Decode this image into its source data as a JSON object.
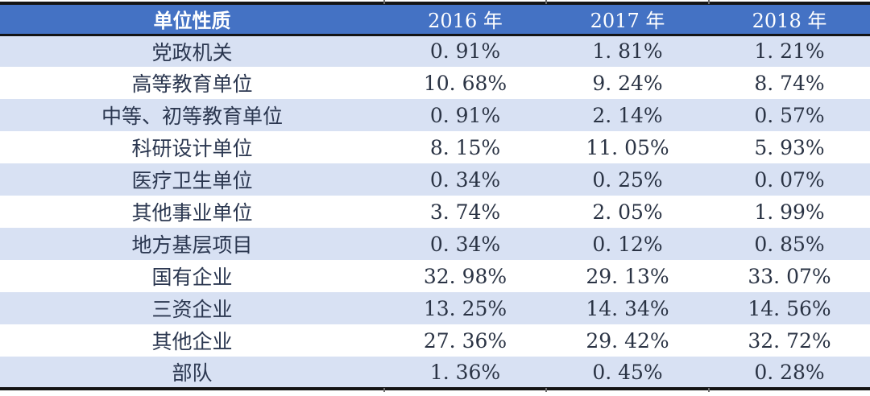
{
  "table": {
    "columns": [
      "单位性质",
      "2016 年",
      "2017 年",
      "2018 年"
    ],
    "rows": [
      {
        "label": "党政机关",
        "cells": [
          "0. 91%",
          "1. 81%",
          "1. 21%"
        ]
      },
      {
        "label": "高等教育单位",
        "cells": [
          "10. 68%",
          "9. 24%",
          "8. 74%"
        ]
      },
      {
        "label": "中等、初等教育单位",
        "cells": [
          "0. 91%",
          "2. 14%",
          "0. 57%"
        ]
      },
      {
        "label": "科研设计单位",
        "cells": [
          "8. 15%",
          "11. 05%",
          "5. 93%"
        ]
      },
      {
        "label": "医疗卫生单位",
        "cells": [
          "0. 34%",
          "0. 25%",
          "0. 07%"
        ]
      },
      {
        "label": "其他事业单位",
        "cells": [
          "3. 74%",
          "2. 05%",
          "1. 99%"
        ]
      },
      {
        "label": "地方基层项目",
        "cells": [
          "0. 34%",
          "0. 12%",
          "0. 85%"
        ]
      },
      {
        "label": "国有企业",
        "cells": [
          "32. 98%",
          "29. 13%",
          "33. 07%"
        ]
      },
      {
        "label": "三资企业",
        "cells": [
          "13. 25%",
          "14. 34%",
          "14. 56%"
        ]
      },
      {
        "label": "其他企业",
        "cells": [
          "27. 36%",
          "29. 42%",
          "32. 72%"
        ]
      },
      {
        "label": "部队",
        "cells": [
          "1. 36%",
          "0. 45%",
          "0. 28%"
        ]
      }
    ]
  },
  "chart_data": {
    "type": "table",
    "title": "",
    "unit": "%",
    "categories": [
      "党政机关",
      "高等教育单位",
      "中等、初等教育单位",
      "科研设计单位",
      "医疗卫生单位",
      "其他事业单位",
      "地方基层项目",
      "国有企业",
      "三资企业",
      "其他企业",
      "部队"
    ],
    "series": [
      {
        "name": "2016 年",
        "values": [
          0.91,
          10.68,
          0.91,
          8.15,
          0.34,
          3.74,
          0.34,
          32.98,
          13.25,
          27.36,
          1.36
        ]
      },
      {
        "name": "2017 年",
        "values": [
          1.81,
          9.24,
          2.14,
          11.05,
          0.25,
          2.05,
          0.12,
          29.13,
          14.34,
          29.42,
          0.45
        ]
      },
      {
        "name": "2018 年",
        "values": [
          1.21,
          8.74,
          0.57,
          5.93,
          0.07,
          1.99,
          0.85,
          33.07,
          14.56,
          32.72,
          0.28
        ]
      }
    ]
  },
  "colors": {
    "header_bg": "#4472C4",
    "header_text": "#FFFFFF",
    "band_row_bg": "#D8E1F3",
    "plain_row_bg": "#FFFFFF",
    "body_text": "#2A3344",
    "rule": "#141414"
  }
}
